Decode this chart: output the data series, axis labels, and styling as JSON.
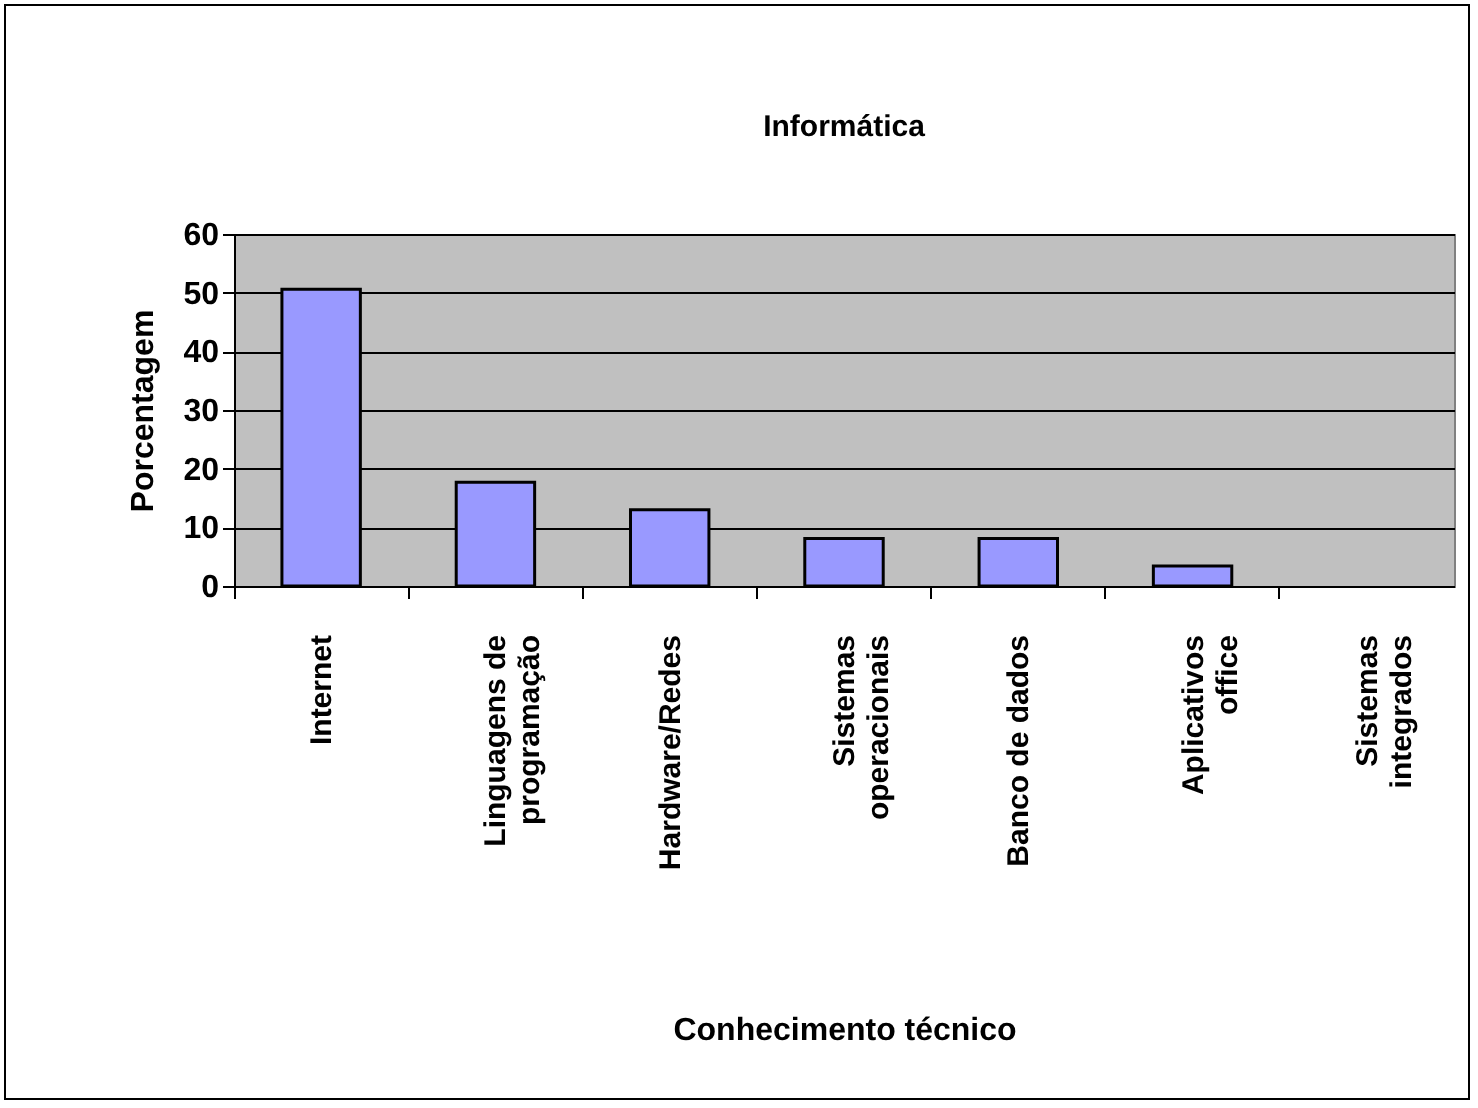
{
  "chart_data": {
    "type": "bar",
    "title": "Informática",
    "xlabel": "Conhecimento técnico",
    "ylabel": "Porcentagem",
    "categories": [
      "Internet",
      "Linguagens de\nprogramação",
      "Hardware/Redes",
      "Sistemas\noperacionais",
      "Banco de dados",
      "Aplicativos\noffice",
      "Sistemas\nintegrados"
    ],
    "values": [
      50.6,
      17.7,
      13,
      8.1,
      8.1,
      3.4,
      0
    ],
    "color": "#9999ff",
    "ylim": [
      0,
      60
    ],
    "yticks": [
      0,
      10,
      20,
      30,
      40,
      50,
      60
    ],
    "grid": "y"
  }
}
